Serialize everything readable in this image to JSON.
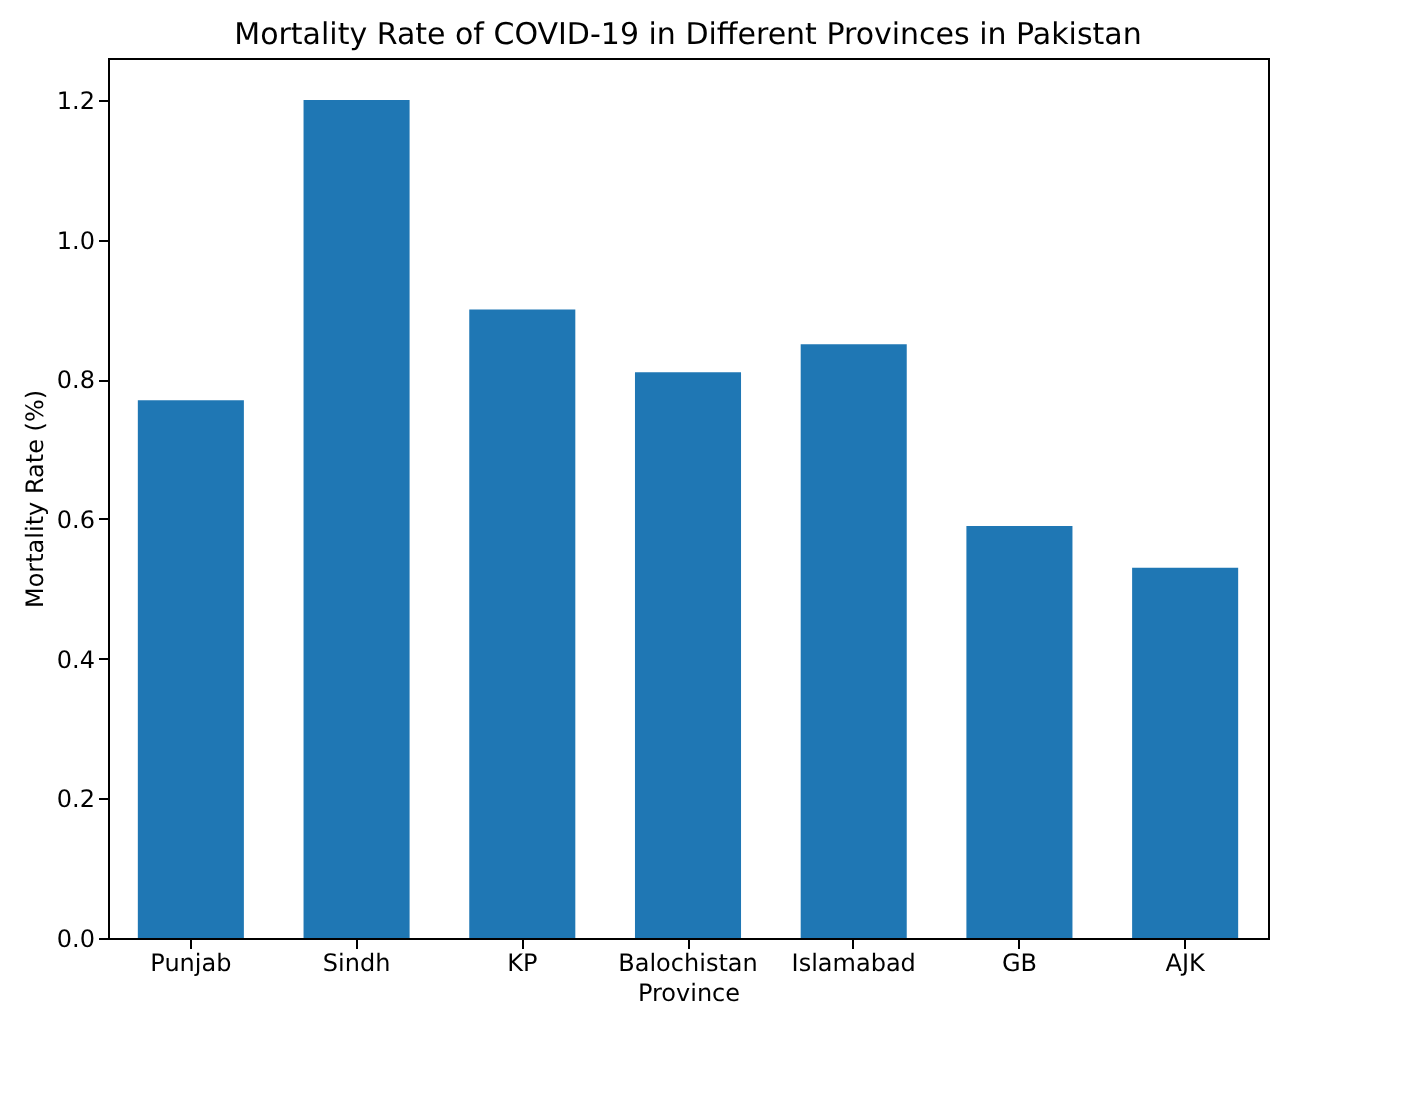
{
  "chart_data": {
    "type": "bar",
    "title": "Mortality Rate of COVID-19 in Different Provinces in Pakistan",
    "xlabel": "Province",
    "ylabel": "Mortality Rate (%)",
    "categories": [
      "Punjab",
      "Sindh",
      "KP",
      "Balochistan",
      "Islamabad",
      "GB",
      "AJK"
    ],
    "values": [
      0.77,
      1.2,
      0.9,
      0.81,
      0.85,
      0.59,
      0.53
    ],
    "color": "#1f77b4",
    "ylim": [
      0,
      1.26
    ],
    "yticks": [
      {
        "value": 0,
        "label": "0.0"
      },
      {
        "value": 0.2,
        "label": "0.2"
      },
      {
        "value": 0.4,
        "label": "0.4"
      },
      {
        "value": 0.6,
        "label": "0.6"
      },
      {
        "value": 0.8,
        "label": "0.8"
      },
      {
        "value": 1.0,
        "label": "1.0"
      },
      {
        "value": 1.2,
        "label": "1.2"
      }
    ],
    "grid": false
  }
}
